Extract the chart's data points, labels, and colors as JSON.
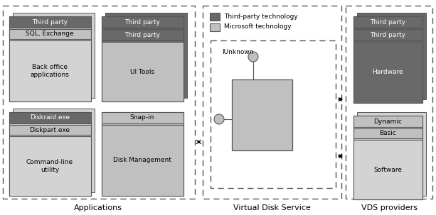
{
  "dark_gray": "#696969",
  "light_gray": "#C0C0C0",
  "lighter_gray": "#D3D3D3",
  "white": "#FFFFFF",
  "bg_color": "#FFFFFF",
  "section_labels": [
    "Applications",
    "Virtual Disk Service",
    "VDS providers"
  ],
  "legend_items": [
    "Third-party technology",
    "Microsoft technology"
  ]
}
